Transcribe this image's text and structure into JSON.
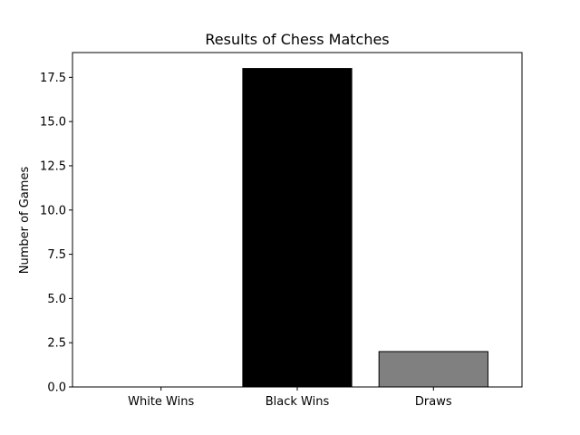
{
  "chart_data": {
    "type": "bar",
    "title": "Results of Chess Matches",
    "xlabel": "",
    "ylabel": "Number of Games",
    "categories": [
      "White Wins",
      "Black Wins",
      "Draws"
    ],
    "values": [
      0,
      18,
      2
    ],
    "bar_colors": [
      "#ffffff",
      "#000000",
      "#808080"
    ],
    "edge_color": "#000000",
    "ylim": [
      0,
      18.9
    ],
    "yticks": [
      0.0,
      2.5,
      5.0,
      7.5,
      10.0,
      12.5,
      15.0,
      17.5
    ],
    "ytick_labels": [
      "0.0",
      "2.5",
      "5.0",
      "7.5",
      "10.0",
      "12.5",
      "15.0",
      "17.5"
    ],
    "grid": false,
    "legend": "none"
  }
}
